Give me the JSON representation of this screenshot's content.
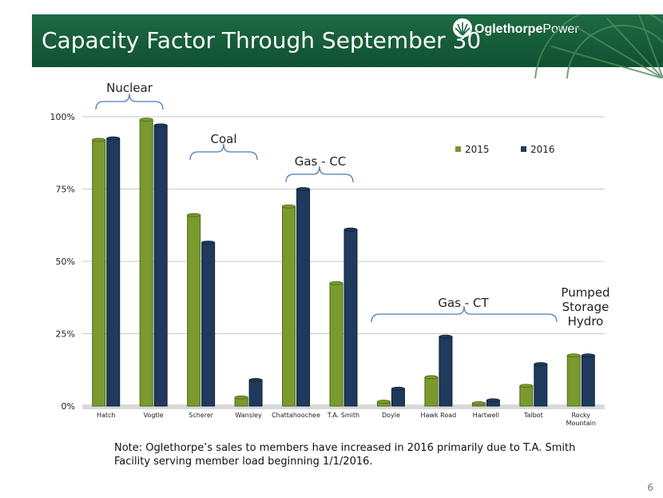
{
  "slide": {
    "title": "Capacity Factor Through September 30",
    "logo_bold": "Oglethorpe",
    "logo_light": "Power",
    "note": "Note: Oglethorpe’s sales to members have increased in 2016 primarily due to T.A. Smith Facility serving member load beginning 1/1/2016.",
    "page_number": "6"
  },
  "colors": {
    "title_bar": "#1a6640",
    "series_2015": "#7a9a2e",
    "series_2016": "#1f3a5c",
    "brace": "#4a7ebb"
  },
  "groups": [
    {
      "label": "Nuclear"
    },
    {
      "label": "Coal"
    },
    {
      "label": "Gas - CC"
    },
    {
      "label": "Gas - CT"
    },
    {
      "label": "Pumped Storage Hydro"
    }
  ],
  "chart_data": {
    "type": "bar",
    "categories": [
      "Hatch",
      "Vogtle",
      "Scherer",
      "Wansley",
      "Chattahoochee",
      "T.A. Smith",
      "Doyle",
      "Hawk Road",
      "Hartwell",
      "Talbot",
      "Rocky Mountain"
    ],
    "series": [
      {
        "name": "2015",
        "values": [
          92,
          99,
          66,
          3,
          69,
          42.5,
          1.5,
          10,
          1,
          7,
          17.5
        ]
      },
      {
        "name": "2016",
        "values": [
          92.5,
          97,
          56.5,
          9,
          75,
          61,
          6,
          24,
          2,
          14.5,
          17.5
        ]
      }
    ],
    "yticks": [
      "0%",
      "25%",
      "50%",
      "75%",
      "100%"
    ],
    "ylim": [
      0,
      100
    ],
    "legend_position": "top-right",
    "grid": true
  }
}
